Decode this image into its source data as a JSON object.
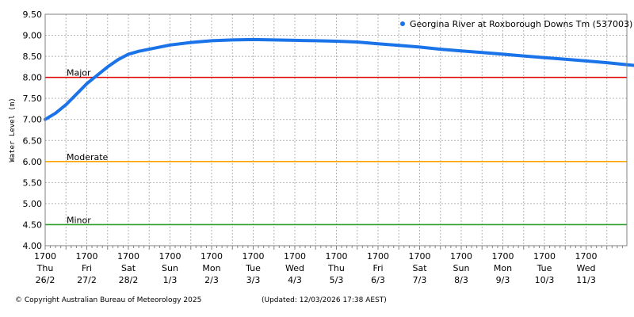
{
  "chart_data": {
    "type": "line",
    "ylabel": "Water Level (m)",
    "ylim": [
      4.0,
      9.5
    ],
    "y_ticks": [
      "4.00",
      "4.50",
      "5.00",
      "5.50",
      "6.00",
      "6.50",
      "7.00",
      "7.50",
      "8.00",
      "8.50",
      "9.00",
      "9.50"
    ],
    "x_unit": "day",
    "xlim": [
      0,
      14.5
    ],
    "x_ticks": [
      {
        "time": "1700",
        "day": "Thu",
        "date": "26/2"
      },
      {
        "time": "1700",
        "day": "Fri",
        "date": "27/2"
      },
      {
        "time": "1700",
        "day": "Sat",
        "date": "28/2"
      },
      {
        "time": "1700",
        "day": "Sun",
        "date": "1/3"
      },
      {
        "time": "1700",
        "day": "Mon",
        "date": "2/3"
      },
      {
        "time": "1700",
        "day": "Tue",
        "date": "3/3"
      },
      {
        "time": "1700",
        "day": "Wed",
        "date": "4/3"
      },
      {
        "time": "1700",
        "day": "Thu",
        "date": "5/3"
      },
      {
        "time": "1700",
        "day": "Fri",
        "date": "6/3"
      },
      {
        "time": "1700",
        "day": "Sat",
        "date": "7/3"
      },
      {
        "time": "1700",
        "day": "Sun",
        "date": "8/3"
      },
      {
        "time": "1700",
        "day": "Mon",
        "date": "9/3"
      },
      {
        "time": "1700",
        "day": "Tue",
        "date": "10/3"
      },
      {
        "time": "1700",
        "day": "Wed",
        "date": "11/3"
      }
    ],
    "grid": true,
    "legend_position": "top-right",
    "series": [
      {
        "name": "Georgina River at Roxborough Downs Tm (537003)",
        "color": "#1a73e8",
        "x": [
          0,
          0.25,
          0.5,
          0.75,
          1.0,
          1.25,
          1.5,
          1.75,
          2.0,
          2.25,
          2.5,
          3.0,
          3.5,
          4.0,
          4.5,
          5.0,
          5.5,
          6.0,
          6.5,
          7.0,
          7.5,
          8.0,
          8.5,
          9.0,
          9.5,
          10.0,
          10.5,
          11.0,
          11.5,
          12.0,
          12.5,
          13.0,
          13.5,
          14.0,
          14.4
        ],
        "y": [
          7.0,
          7.15,
          7.35,
          7.6,
          7.85,
          8.05,
          8.25,
          8.42,
          8.55,
          8.62,
          8.67,
          8.77,
          8.83,
          8.87,
          8.89,
          8.9,
          8.89,
          8.88,
          8.87,
          8.86,
          8.84,
          8.8,
          8.76,
          8.72,
          8.67,
          8.63,
          8.59,
          8.55,
          8.51,
          8.47,
          8.43,
          8.39,
          8.35,
          8.3,
          8.26
        ]
      }
    ],
    "thresholds": [
      {
        "label": "Major",
        "value": 8.0,
        "color": "#e00000"
      },
      {
        "label": "Moderate",
        "value": 6.0,
        "color": "#ffa500"
      },
      {
        "label": "Minor",
        "value": 4.5,
        "color": "#2ca02c"
      }
    ]
  },
  "footer": {
    "copyright": "© Copyright Australian Bureau of Meteorology 2025",
    "updated": "(Updated: 12/03/2026 17:38 AEST)"
  }
}
